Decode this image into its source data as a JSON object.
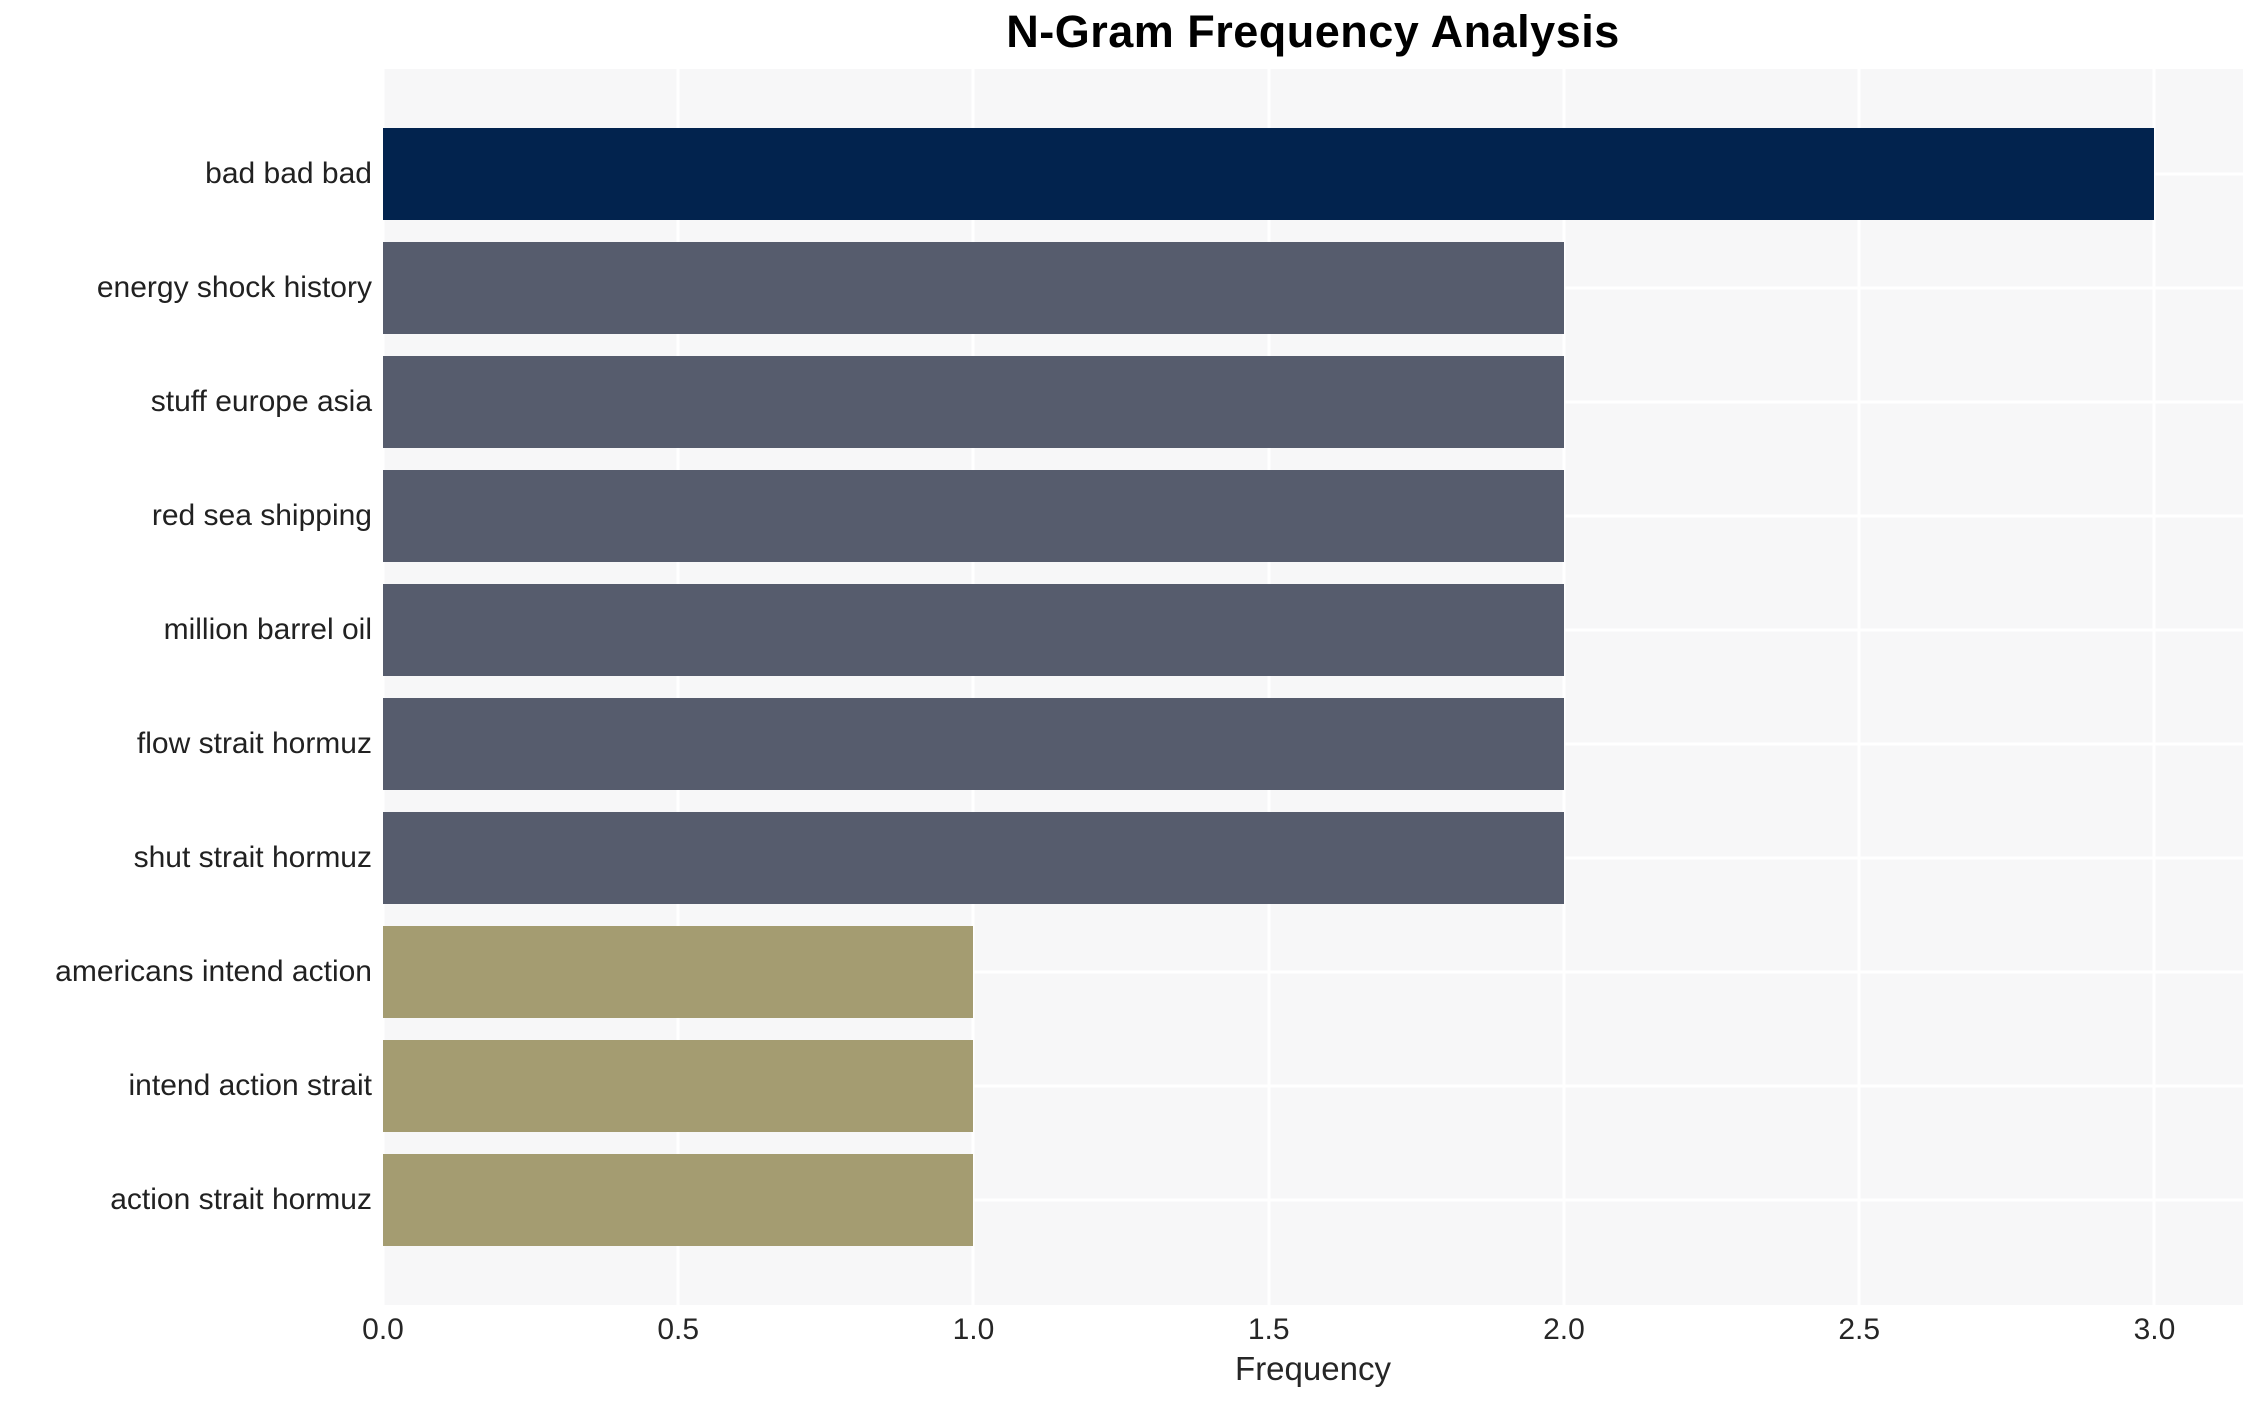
{
  "chart_data": {
    "type": "bar",
    "orientation": "horizontal",
    "title": "N-Gram Frequency Analysis",
    "xlabel": "Frequency",
    "ylabel": "",
    "categories": [
      "bad bad bad",
      "energy shock history",
      "stuff europe asia",
      "red sea shipping",
      "million barrel oil",
      "flow strait hormuz",
      "shut strait hormuz",
      "americans intend action",
      "intend action strait",
      "action strait hormuz"
    ],
    "values": [
      3,
      2,
      2,
      2,
      2,
      2,
      2,
      1,
      1,
      1
    ],
    "bar_colors": [
      "#02234e",
      "#565c6d",
      "#565c6d",
      "#565c6d",
      "#565c6d",
      "#565c6d",
      "#565c6d",
      "#a49c71",
      "#a49c71",
      "#a49c71"
    ],
    "xticks": [
      0.0,
      0.5,
      1.0,
      1.5,
      2.0,
      2.5,
      3.0
    ],
    "xtick_labels": [
      "0.0",
      "0.5",
      "1.0",
      "1.5",
      "2.0",
      "2.5",
      "3.0"
    ],
    "xlim": [
      0,
      3.15
    ],
    "grid": {
      "axis": "both",
      "color": "#ffffff"
    },
    "plot_background": "#f7f7f8",
    "figure_background": "#ffffff",
    "legend": "none"
  }
}
